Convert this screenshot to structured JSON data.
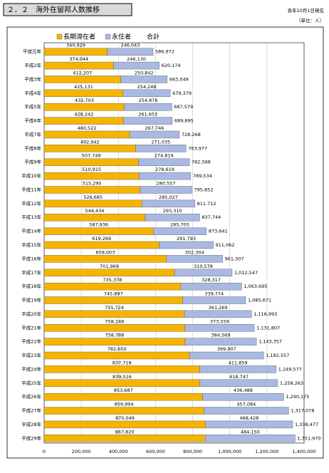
{
  "header": {
    "title": "２．２　海外在留邦人数推移",
    "date_note": "各年10月1日現在",
    "unit_note": "（単位：人）"
  },
  "chart_data": {
    "type": "bar",
    "orientation": "horizontal",
    "stacked": true,
    "categories": [
      "平成元年",
      "平成2年",
      "平成3年",
      "平成4年",
      "平成5年",
      "平成6年",
      "平成7年",
      "平成8年",
      "平成9年",
      "平成10年",
      "平成11年",
      "平成12年",
      "平成13年",
      "平成14年",
      "平成15年",
      "平成16年",
      "平成17年",
      "平成18年",
      "平成19年",
      "平成20年",
      "平成21年",
      "平成22年",
      "平成23年",
      "平成24年",
      "平成25年",
      "平成26年",
      "平成27年",
      "平成28年",
      "平成29年"
    ],
    "series": [
      {
        "name": "長期滞在者",
        "color": "#f5b400",
        "values": [
          340929,
          374044,
          412207,
          425131,
          432703,
          428242,
          460522,
          492942,
          507749,
          510915,
          515295,
          526685,
          544434,
          587936,
          619269,
          659003,
          701969,
          735378,
          745897,
          755724,
          758248,
          758788,
          782650,
          837718,
          839516,
          853687,
          859994,
          870049,
          867820
        ],
        "value_labels": [
          "340,929",
          "374,044",
          "412,207",
          "425,131",
          "432,703",
          "428,242",
          "460,522",
          "492,942",
          "507,749",
          "510,915",
          "515,295",
          "526,685",
          "544,434",
          "587,936",
          "619,269",
          "659,003",
          "701,969",
          "735,378",
          "745,897",
          "755,724",
          "758,248",
          "758,788",
          "782,650",
          "837,718",
          "839,516",
          "853,687",
          "859,994",
          "870,049",
          "867,820"
        ]
      },
      {
        "name": "永住者",
        "color": "#a9b9e3",
        "values": [
          246043,
          246130,
          250842,
          254248,
          254876,
          261653,
          267746,
          271035,
          274819,
          278619,
          280557,
          285027,
          293310,
          285705,
          291793,
          302304,
          310578,
          328317,
          339774,
          361269,
          373559,
          384569,
          399907,
          411859,
          418747,
          436488,
          457084,
          468428,
          484150
        ],
        "value_labels": [
          "246,043",
          "246,130",
          "250,842",
          "254,248",
          "254,876",
          "261,653",
          "267,746",
          "271,035",
          "274,819",
          "278,619",
          "280,557",
          "285,027",
          "293,310",
          "285,705",
          "291,793",
          "302,304",
          "310,578",
          "328,317",
          "339,774",
          "361,269",
          "373,559",
          "384,569",
          "399,907",
          "411,859",
          "418,747",
          "436,488",
          "457,084",
          "468,428",
          "484,150"
        ]
      }
    ],
    "total": {
      "name": "合計",
      "values": [
        586972,
        620174,
        663049,
        679379,
        687579,
        689895,
        728268,
        763977,
        782568,
        789534,
        795852,
        811712,
        837744,
        873641,
        911062,
        961307,
        1012547,
        1063695,
        1085671,
        1116993,
        1131807,
        1143357,
        1182557,
        1249577,
        1258263,
        1290175,
        1317078,
        1338477,
        1351970
      ],
      "value_labels": [
        "586,972",
        "620,174",
        "663,049",
        "679,379",
        "687,579",
        "689,895",
        "728,268",
        "763,977",
        "782,568",
        "789,534",
        "795,852",
        "811,712",
        "837,744",
        "873,641",
        "911,062",
        "961,307",
        "1,012,547",
        "1,063,695",
        "1,085,671",
        "1,116,993",
        "1,131,807",
        "1,143,357",
        "1,182,557",
        "1,249,577",
        "1,258,263",
        "1,290,175",
        "1,317,078",
        "1,338,477",
        "1,351,970"
      ]
    },
    "xlim": [
      0,
      1400000
    ],
    "xticks": [
      0,
      {
        "value": 200000,
        "label": "200,000"
      },
      {
        "value": 400000,
        "label": "400,000"
      },
      {
        "value": 600000,
        "label": "600,000"
      },
      {
        "value": 800000,
        "label": "800,000"
      },
      {
        "value": 1000000,
        "label": "1,000,000"
      },
      {
        "value": 1200000,
        "label": "1,200,000"
      },
      {
        "value": 1400000,
        "label": "1,400,000"
      }
    ],
    "grid": true
  }
}
